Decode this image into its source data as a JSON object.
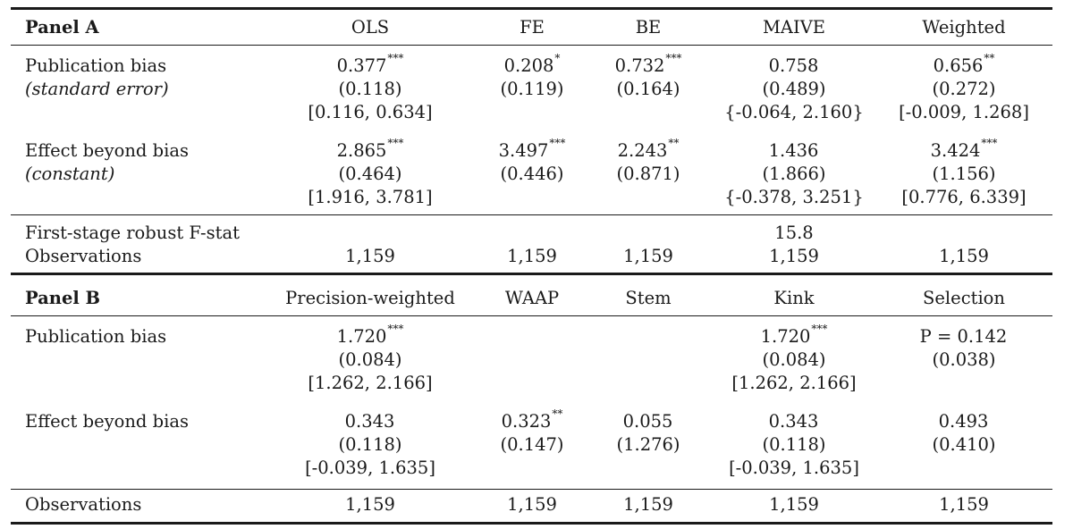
{
  "panel_a": {
    "label": "Panel A",
    "columns": [
      "OLS",
      "FE",
      "BE",
      "MAIVE",
      "Weighted"
    ],
    "rows": [
      {
        "labels": [
          "Publication bias",
          "(standard error)"
        ],
        "cells": [
          {
            "value": "0.377",
            "stars": "***",
            "se": "(0.118)",
            "ci": "[0.116, 0.634]"
          },
          {
            "value": "0.208",
            "stars": "*",
            "se": "(0.119)",
            "ci": ""
          },
          {
            "value": "0.732",
            "stars": "***",
            "se": "(0.164)",
            "ci": ""
          },
          {
            "value": "0.758",
            "stars": "",
            "se": "(0.489)",
            "ci": "{-0.064, 2.160}"
          },
          {
            "value": "0.656",
            "stars": "**",
            "se": "(0.272)",
            "ci": "[-0.009, 1.268]"
          }
        ]
      },
      {
        "labels": [
          "Effect beyond bias",
          "(constant)"
        ],
        "cells": [
          {
            "value": "2.865",
            "stars": "***",
            "se": "(0.464)",
            "ci": "[1.916, 3.781]"
          },
          {
            "value": "3.497",
            "stars": "***",
            "se": "(0.446)",
            "ci": ""
          },
          {
            "value": "2.243",
            "stars": "**",
            "se": "(0.871)",
            "ci": ""
          },
          {
            "value": "1.436",
            "stars": "",
            "se": "(1.866)",
            "ci": "{-0.378, 3.251}"
          },
          {
            "value": "3.424",
            "stars": "***",
            "se": "(1.156)",
            "ci": "[0.776, 6.339]"
          }
        ]
      }
    ],
    "fstat": {
      "label": "First-stage robust F-stat",
      "values": [
        "",
        "",
        "",
        "15.8",
        ""
      ]
    },
    "observations": {
      "label": "Observations",
      "values": [
        "1,159",
        "1,159",
        "1,159",
        "1,159",
        "1,159"
      ]
    }
  },
  "panel_b": {
    "label": "Panel B",
    "columns": [
      "Precision-weighted",
      "WAAP",
      "Stem",
      "Kink",
      "Selection"
    ],
    "rows": [
      {
        "labels": [
          "Publication bias",
          ""
        ],
        "cells": [
          {
            "value": "1.720",
            "stars": "***",
            "se": "(0.084)",
            "ci": "[1.262, 2.166]"
          },
          {
            "value": "",
            "stars": "",
            "se": "",
            "ci": ""
          },
          {
            "value": "",
            "stars": "",
            "se": "",
            "ci": ""
          },
          {
            "value": "1.720",
            "stars": "***",
            "se": "(0.084)",
            "ci": "[1.262, 2.166]"
          },
          {
            "value": "P = 0.142",
            "stars": "",
            "se": "(0.038)",
            "ci": ""
          }
        ]
      },
      {
        "labels": [
          "Effect beyond bias",
          ""
        ],
        "cells": [
          {
            "value": "0.343",
            "stars": "",
            "se": "(0.118)",
            "ci": "[-0.039, 1.635]"
          },
          {
            "value": "0.323",
            "stars": "**",
            "se": "(0.147)",
            "ci": ""
          },
          {
            "value": "0.055",
            "stars": "",
            "se": "(1.276)",
            "ci": ""
          },
          {
            "value": "0.343",
            "stars": "",
            "se": "(0.118)",
            "ci": "[-0.039, 1.635]"
          },
          {
            "value": "0.493",
            "stars": "",
            "se": "(0.410)",
            "ci": ""
          }
        ]
      }
    ],
    "observations": {
      "label": "Observations",
      "values": [
        "1,159",
        "1,159",
        "1,159",
        "1,159",
        "1,159"
      ]
    }
  }
}
